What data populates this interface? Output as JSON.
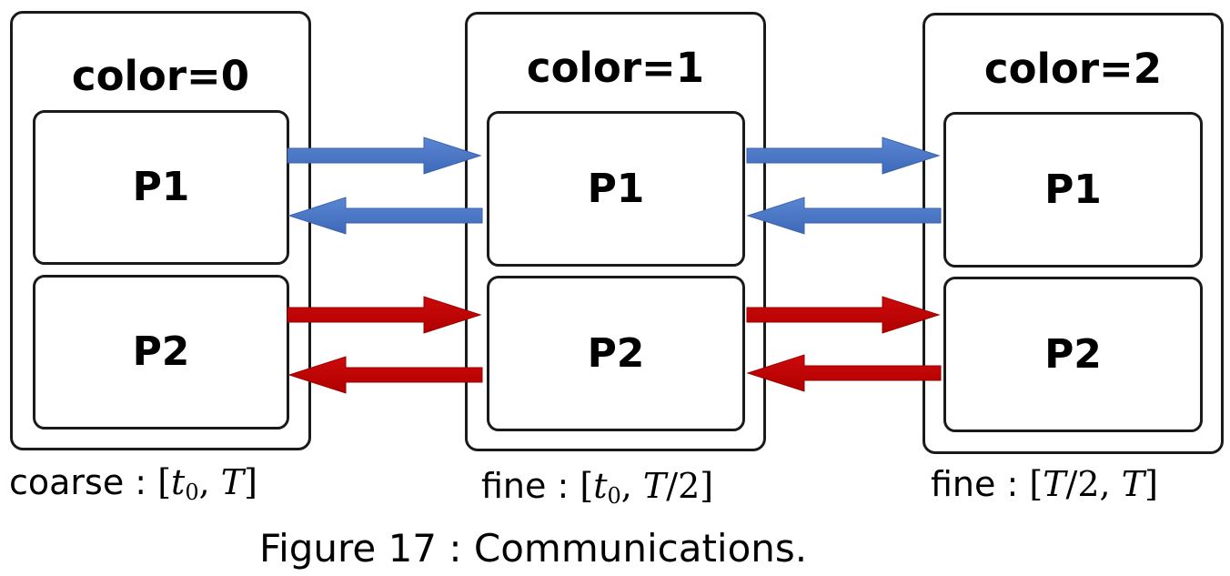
{
  "colors": {
    "blue_arrow": "#4472c4",
    "red_arrow": "#c00000",
    "border": "#1a1a1a"
  },
  "groups": [
    {
      "title": "color=0",
      "processes": [
        "P1",
        "P2"
      ],
      "caption_text": "coarse : ",
      "caption_math": {
        "open": "[",
        "a": "t",
        "a_sub": "0",
        "sep": ", ",
        "b": "T",
        "b_rest": "",
        "close": "]"
      }
    },
    {
      "title": "color=1",
      "processes": [
        "P1",
        "P2"
      ],
      "caption_text": "fine : ",
      "caption_math": {
        "open": "[",
        "a": "t",
        "a_sub": "0",
        "sep": ", ",
        "b": "T",
        "b_rest": "/2",
        "close": "]"
      }
    },
    {
      "title": "color=2",
      "processes": [
        "P1",
        "P2"
      ],
      "caption_text": "fine : ",
      "caption_math": {
        "open": "[",
        "a": "T",
        "a_sub": "",
        "a_rest": "/2",
        "sep": ", ",
        "b": "T",
        "b_rest": "",
        "close": "]"
      }
    }
  ],
  "figure_caption": "Figure 17 : Communications."
}
